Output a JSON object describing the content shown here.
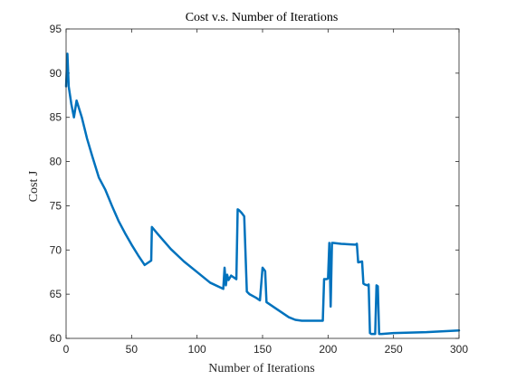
{
  "chart_data": {
    "type": "line",
    "title": "Cost v.s. Number of Iterations",
    "xlabel": "Number of Iterations",
    "ylabel": "Cost J",
    "xlim": [
      0,
      300
    ],
    "ylim": [
      60,
      95
    ],
    "xticks": [
      0,
      50,
      100,
      150,
      200,
      250,
      300
    ],
    "yticks": [
      60,
      65,
      70,
      75,
      80,
      85,
      90,
      95
    ],
    "grid": false,
    "line_color": "#0072BD",
    "series": [
      {
        "x": [
          0,
          1,
          2,
          4,
          6,
          8,
          12,
          16,
          20,
          25,
          30,
          35,
          40,
          45,
          50,
          55,
          60,
          65,
          65.5,
          70,
          80,
          90,
          100,
          110,
          120,
          121,
          122,
          123,
          124,
          126,
          130,
          131,
          132,
          134,
          136,
          138,
          140,
          145,
          148,
          150,
          151,
          152,
          153,
          160,
          170,
          175,
          180,
          196,
          197,
          199,
          200,
          201,
          202,
          203,
          204,
          210,
          220,
          221,
          222,
          223,
          226,
          227,
          228,
          230,
          231,
          232,
          233,
          236,
          237,
          238,
          239,
          240,
          241,
          250,
          275,
          300
        ],
        "y": [
          88.5,
          92.2,
          88.5,
          86.5,
          85.0,
          86.9,
          85.0,
          82.6,
          80.6,
          78.2,
          76.8,
          75.0,
          73.3,
          71.9,
          70.6,
          69.4,
          68.3,
          68.8,
          72.6,
          71.8,
          70.1,
          68.7,
          67.5,
          66.3,
          65.6,
          68.0,
          66.0,
          67.2,
          66.6,
          67.1,
          66.7,
          74.6,
          74.5,
          74.2,
          73.8,
          65.3,
          65.0,
          64.6,
          64.3,
          68.0,
          67.8,
          67.6,
          64.1,
          63.4,
          62.4,
          62.1,
          62.0,
          62.0,
          66.7,
          66.7,
          66.8,
          70.8,
          63.6,
          70.8,
          70.8,
          70.7,
          70.6,
          70.6,
          70.7,
          68.6,
          68.7,
          66.2,
          66.1,
          66.0,
          66.1,
          60.6,
          60.5,
          60.5,
          66.0,
          65.9,
          60.5,
          60.5,
          60.5,
          60.6,
          60.7,
          60.9
        ]
      }
    ]
  }
}
